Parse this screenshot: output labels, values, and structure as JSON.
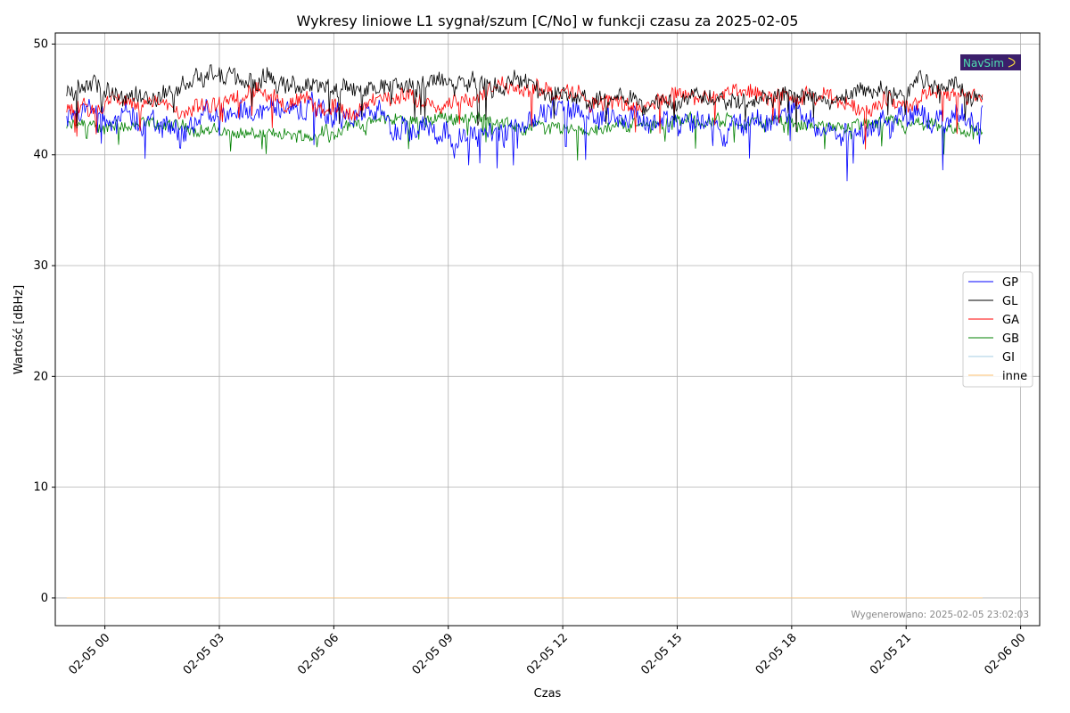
{
  "chart_data": {
    "type": "line",
    "title": "Wykresy liniowe L1 sygnał/szum [C/No] w funkcji czasu za 2025-02-05",
    "xlabel": "Czas",
    "ylabel": "Wartość [dBHz]",
    "x_ticks": [
      "02-05 00",
      "02-05 03",
      "02-05 06",
      "02-05 09",
      "02-05 12",
      "02-05 15",
      "02-05 18",
      "02-05 21",
      "02-06 00"
    ],
    "y_ticks": [
      "0",
      "10",
      "20",
      "30",
      "40",
      "50"
    ],
    "xlim": [
      -1.3,
      24.5
    ],
    "ylim": [
      -2.5,
      51
    ],
    "grid": true,
    "legend_position": "center-right",
    "series": [
      {
        "name": "GP",
        "color": "#0000ff",
        "mean": 43.5,
        "amp": 1.3,
        "x": [
          -1,
          0,
          2,
          4,
          6,
          8,
          10,
          11,
          12,
          14,
          16,
          18,
          19.5,
          21,
          22,
          23
        ],
        "y": [
          44,
          43.6,
          42.5,
          44.5,
          43.5,
          43,
          41.5,
          43.5,
          44.5,
          43.5,
          42,
          43.5,
          42,
          43.5,
          43,
          43
        ]
      },
      {
        "name": "GL",
        "color": "#000000",
        "mean": 45.8,
        "amp": 1.0,
        "x": [
          -1,
          1,
          2.5,
          5,
          7,
          9,
          11,
          13,
          15,
          17,
          19,
          21,
          22,
          23
        ],
        "y": [
          46,
          45,
          47,
          46,
          46,
          46.5,
          46.5,
          44.5,
          45.5,
          45.5,
          45,
          46,
          46.5,
          45.5
        ]
      },
      {
        "name": "GA",
        "color": "#ff0000",
        "mean": 44.8,
        "amp": 0.9,
        "x": [
          -1,
          1,
          2,
          4,
          6,
          8,
          10,
          11,
          12,
          14,
          16,
          18,
          20,
          22,
          23
        ],
        "y": [
          44.5,
          45,
          43.5,
          45.5,
          44,
          45,
          45.5,
          46.5,
          45.5,
          44.5,
          45.5,
          45,
          44.5,
          45.5,
          45
        ]
      },
      {
        "name": "GB",
        "color": "#008000",
        "mean": 42.4,
        "amp": 0.7,
        "x": [
          -1,
          2,
          5,
          7,
          9,
          11,
          13,
          15,
          17,
          19,
          21,
          23
        ],
        "y": [
          42.5,
          42.5,
          41.5,
          43,
          43.5,
          42.5,
          42.5,
          43,
          43,
          42.5,
          42.5,
          42
        ]
      },
      {
        "name": "GI",
        "color": "#a6cee3",
        "x": [
          -1,
          23
        ],
        "y": [
          0,
          0
        ]
      },
      {
        "name": "inne",
        "color": "#fdbf6f",
        "x": [
          -1,
          23
        ],
        "y": [
          0,
          0
        ]
      }
    ],
    "footer": "Wygenerowano: 2025-02-05 23:02:03"
  },
  "logo": {
    "text": "NavSim",
    "bg_color": "#3b1f6b"
  }
}
